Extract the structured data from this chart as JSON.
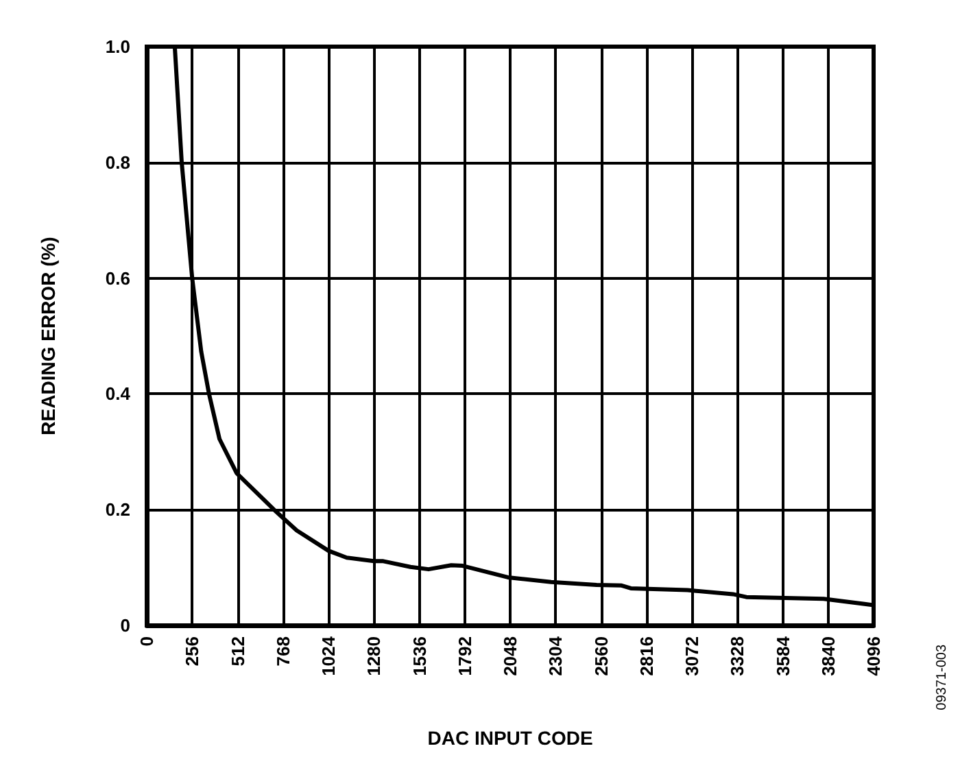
{
  "chart_data": {
    "type": "line",
    "xlabel": "DAC INPUT CODE",
    "ylabel": "READING ERROR (%)",
    "x": [
      158,
      197,
      256,
      307,
      351,
      410,
      507,
      717,
      845,
      1024,
      1127,
      1280,
      1333,
      1486,
      1588,
      1716,
      1780,
      2035,
      2279,
      2535,
      2676,
      2728,
      3047,
      3303,
      3379,
      3814,
      4045,
      4096
    ],
    "series": [
      {
        "color": "#000000",
        "values": [
          1.0,
          0.8,
          0.6,
          0.473,
          0.4,
          0.322,
          0.263,
          0.2,
          0.164,
          0.129,
          0.117,
          0.111,
          0.111,
          0.101,
          0.097,
          0.104,
          0.103,
          0.083,
          0.075,
          0.07,
          0.069,
          0.064,
          0.061,
          0.054,
          0.049,
          0.046,
          0.037,
          0.035
        ]
      }
    ],
    "xlim": [
      0,
      4096
    ],
    "xticks": [
      0,
      256,
      512,
      768,
      1024,
      1280,
      1536,
      1792,
      2048,
      2304,
      2560,
      2816,
      3072,
      3328,
      3584,
      3840,
      4096
    ],
    "ylim": [
      0,
      1.0
    ],
    "yticks": [
      {
        "value": 0,
        "label": "0"
      },
      {
        "value": 0.2,
        "label": "0.2"
      },
      {
        "value": 0.4,
        "label": "0.4"
      },
      {
        "value": 0.6,
        "label": "0.6"
      },
      {
        "value": 0.8,
        "label": "0.8"
      },
      {
        "value": 1.0,
        "label": "1.0"
      }
    ],
    "grid": true,
    "marker": "none",
    "line_style": "solid",
    "annotations": [
      "09371-003"
    ]
  }
}
